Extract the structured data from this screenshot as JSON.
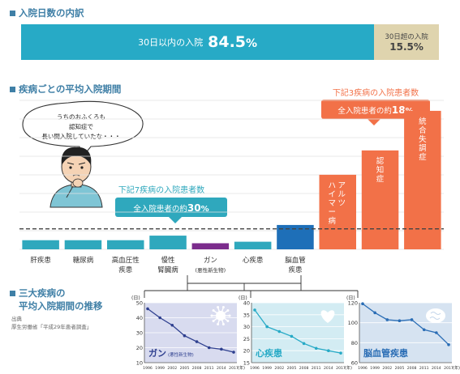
{
  "section1": {
    "title": "入院日数の内訳"
  },
  "split_bar": {
    "within_label": "30日以内の入院",
    "within_value": "84.5",
    "within_unit": "%",
    "over_label": "30日超の入院",
    "over_value": "15.5",
    "over_unit": "%",
    "colors": {
      "within": "#27aac6",
      "over": "#dfd4ae"
    }
  },
  "section2": {
    "title": "疾病ごとの平均入院期間"
  },
  "speech_bubble": {
    "lines": [
      "うちのおふくろも",
      "認知症で",
      "長い間入院していたな・・・"
    ]
  },
  "callout_left": {
    "caption": "下記7疾病の入院患者数",
    "box_prefix": "全入院患者の",
    "box_mid": "約",
    "box_value": "30",
    "box_unit": "%"
  },
  "callout_right": {
    "caption": "下記3疾病の入院患者数",
    "box_prefix": "全入院患者の",
    "box_mid": "約",
    "box_value": "18",
    "box_unit": "%"
  },
  "section3": {
    "title_line1": "三大疾病の",
    "title_line2": "平均入院期間の推移"
  },
  "source": {
    "label": "出典",
    "text": "厚生労働省「平成29年患者調査」"
  },
  "chart_data": [
    {
      "type": "bar",
      "categories": [
        "肝疾患",
        "糖尿病",
        "高血圧性\n疾患",
        "慢性\n腎臓病",
        "ガン\n(悪性新生物)",
        "心疾患",
        "脳血管\n疾患",
        "アルツ\nハイマー病",
        "認知症",
        "統合失調症"
      ],
      "groups": [
        "teal",
        "teal",
        "teal",
        "teal",
        "purple",
        "teal",
        "blue",
        "orange",
        "orange",
        "orange"
      ],
      "relative_heights": [
        0.06,
        0.06,
        0.06,
        0.09,
        0.04,
        0.05,
        0.16,
        0.49,
        0.65,
        0.91
      ],
      "inside_labels": [
        null,
        null,
        null,
        null,
        null,
        null,
        null,
        "アルツ\nハイマー病",
        "認知症",
        "統合失調症"
      ],
      "dashed_line_relative": 0.14,
      "colors": {
        "teal": "#2fa8bd",
        "purple": "#7b2c8c",
        "blue": "#1e6fb8",
        "orange": "#f27148"
      }
    },
    {
      "type": "line",
      "title": "ガン",
      "subtitle": "(悪性新生物)",
      "ylabel": "(日)",
      "xlabel": "(年)",
      "x": [
        "1996",
        "1999",
        "2002",
        "2005",
        "2008",
        "2011",
        "2014",
        "2017"
      ],
      "values": [
        46,
        40,
        35,
        28,
        24,
        20,
        19,
        17
      ],
      "ylim": [
        10,
        50
      ],
      "yticks": [
        10,
        20,
        30,
        40,
        50
      ],
      "color": "#2e3f8f",
      "grid": true
    },
    {
      "type": "line",
      "title": "心疾患",
      "ylabel": "(日)",
      "xlabel": "(年)",
      "x": [
        "1996",
        "1999",
        "2002",
        "2005",
        "2008",
        "2011",
        "2014",
        "2017"
      ],
      "values": [
        37,
        30,
        28,
        26,
        23,
        21,
        20,
        19
      ],
      "ylim": [
        15,
        40
      ],
      "yticks": [
        15,
        20,
        25,
        30,
        35,
        40
      ],
      "color": "#27aac6",
      "grid": true
    },
    {
      "type": "line",
      "title": "脳血管疾患",
      "ylabel": "(日)",
      "xlabel": "(年)",
      "x": [
        "1996",
        "1999",
        "2002",
        "2005",
        "2008",
        "2011",
        "2014",
        "2017"
      ],
      "values": [
        119,
        110,
        103,
        102,
        103,
        93,
        90,
        78
      ],
      "ylim": [
        60,
        120
      ],
      "yticks": [
        60,
        80,
        100,
        120
      ],
      "color": "#2a6db5",
      "grid": true
    }
  ]
}
